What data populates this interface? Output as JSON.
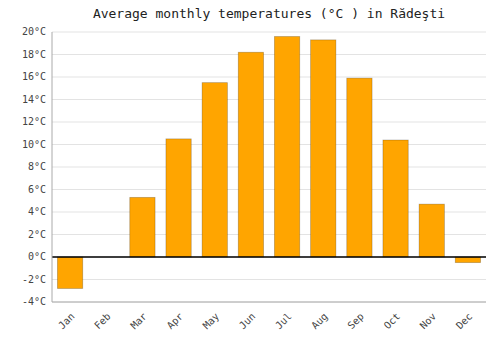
{
  "chart_data": {
    "type": "bar",
    "title": "Average monthly temperatures (°C ) in Rădeşti",
    "categories": [
      "Jan",
      "Feb",
      "Mar",
      "Apr",
      "May",
      "Jun",
      "Jul",
      "Aug",
      "Sep",
      "Oct",
      "Nov",
      "Dec"
    ],
    "values": [
      -2.8,
      0.0,
      5.3,
      10.5,
      15.5,
      18.2,
      19.6,
      19.3,
      15.9,
      10.4,
      4.7,
      -0.5
    ],
    "color": "#FFA500",
    "ylim": [
      -4,
      20
    ],
    "yticks": [
      {
        "value": -4,
        "label": "-4°C"
      },
      {
        "value": -2,
        "label": "-2°C"
      },
      {
        "value": 0,
        "label": "0°C"
      },
      {
        "value": 2,
        "label": "2°C"
      },
      {
        "value": 4,
        "label": "4°C"
      },
      {
        "value": 6,
        "label": "6°C"
      },
      {
        "value": 8,
        "label": "8°C"
      },
      {
        "value": 10,
        "label": "10°C"
      },
      {
        "value": 12,
        "label": "12°C"
      },
      {
        "value": 14,
        "label": "14°C"
      },
      {
        "value": 16,
        "label": "16°C"
      },
      {
        "value": 18,
        "label": "18°C"
      },
      {
        "value": 20,
        "label": "20°C"
      }
    ],
    "grid": true
  }
}
